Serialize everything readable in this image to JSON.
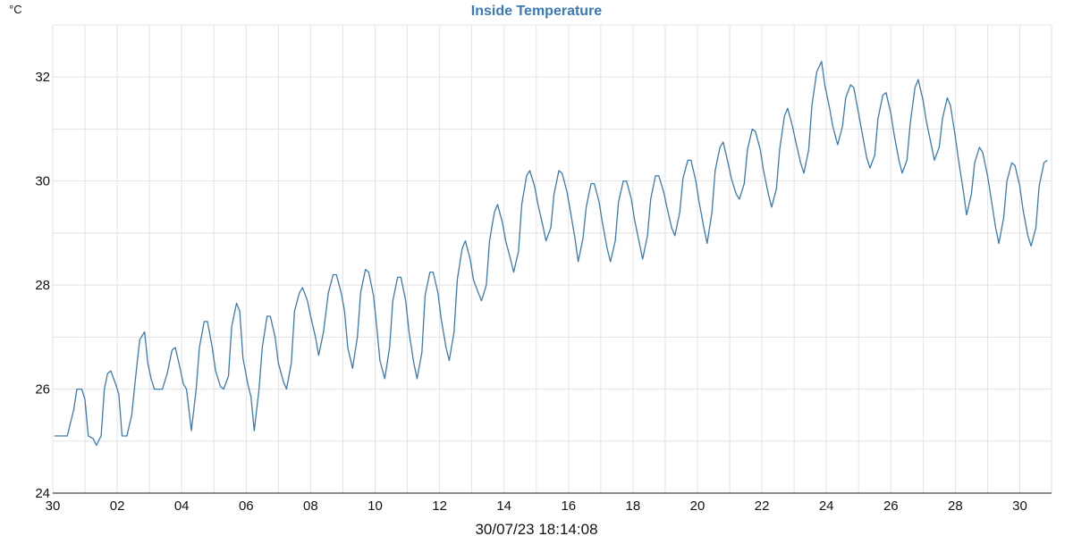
{
  "colors": {
    "title": "#3a7ab5",
    "series": "#3a7ab5"
  },
  "chart_data": {
    "type": "line",
    "title": "Inside Temperature",
    "unit_label": "°C",
    "timestamp": "30/07/23 18:14:08",
    "xlabel": "",
    "ylabel": "",
    "ylim": [
      24,
      33
    ],
    "xlim": [
      0,
      31.8
    ],
    "grid": true,
    "x_tick_labels": [
      "30",
      "02",
      "04",
      "06",
      "08",
      "10",
      "12",
      "14",
      "16",
      "18",
      "20",
      "22",
      "24",
      "26",
      "28",
      "30"
    ],
    "x_tick_values": [
      0,
      2,
      4,
      6,
      8,
      10,
      12,
      14,
      16,
      18,
      20,
      22,
      24,
      26,
      28,
      30
    ],
    "y_tick_values": [
      24,
      26,
      28,
      30,
      32
    ],
    "series": [
      {
        "name": "",
        "points": [
          [
            0.05,
            25.1
          ],
          [
            0.45,
            25.1
          ],
          [
            0.65,
            25.6
          ],
          [
            0.75,
            26.0
          ],
          [
            0.9,
            26.0
          ],
          [
            1.0,
            25.8
          ],
          [
            1.1,
            25.1
          ],
          [
            1.25,
            25.05
          ],
          [
            1.35,
            24.92
          ],
          [
            1.5,
            25.1
          ],
          [
            1.6,
            26.0
          ],
          [
            1.7,
            26.3
          ],
          [
            1.8,
            26.35
          ],
          [
            1.95,
            26.1
          ],
          [
            2.05,
            25.9
          ],
          [
            2.15,
            25.1
          ],
          [
            2.3,
            25.1
          ],
          [
            2.45,
            25.5
          ],
          [
            2.6,
            26.4
          ],
          [
            2.7,
            26.95
          ],
          [
            2.85,
            27.1
          ],
          [
            2.95,
            26.5
          ],
          [
            3.05,
            26.2
          ],
          [
            3.15,
            26.0
          ],
          [
            3.4,
            26.0
          ],
          [
            3.55,
            26.3
          ],
          [
            3.7,
            26.75
          ],
          [
            3.8,
            26.8
          ],
          [
            3.95,
            26.4
          ],
          [
            4.05,
            26.1
          ],
          [
            4.15,
            26.0
          ],
          [
            4.3,
            25.2
          ],
          [
            4.45,
            26.0
          ],
          [
            4.55,
            26.8
          ],
          [
            4.7,
            27.3
          ],
          [
            4.8,
            27.3
          ],
          [
            4.95,
            26.8
          ],
          [
            5.05,
            26.35
          ],
          [
            5.2,
            26.05
          ],
          [
            5.3,
            26.0
          ],
          [
            5.45,
            26.25
          ],
          [
            5.55,
            27.2
          ],
          [
            5.7,
            27.65
          ],
          [
            5.8,
            27.5
          ],
          [
            5.9,
            26.6
          ],
          [
            6.05,
            26.1
          ],
          [
            6.15,
            25.85
          ],
          [
            6.25,
            25.2
          ],
          [
            6.4,
            26.0
          ],
          [
            6.5,
            26.8
          ],
          [
            6.65,
            27.4
          ],
          [
            6.75,
            27.4
          ],
          [
            6.9,
            27.0
          ],
          [
            7.0,
            26.5
          ],
          [
            7.15,
            26.15
          ],
          [
            7.25,
            26.0
          ],
          [
            7.4,
            26.5
          ],
          [
            7.5,
            27.5
          ],
          [
            7.65,
            27.85
          ],
          [
            7.75,
            27.95
          ],
          [
            7.9,
            27.7
          ],
          [
            8.0,
            27.4
          ],
          [
            8.15,
            27.0
          ],
          [
            8.25,
            26.65
          ],
          [
            8.4,
            27.1
          ],
          [
            8.55,
            27.85
          ],
          [
            8.7,
            28.2
          ],
          [
            8.8,
            28.2
          ],
          [
            8.95,
            27.85
          ],
          [
            9.05,
            27.5
          ],
          [
            9.15,
            26.8
          ],
          [
            9.3,
            26.4
          ],
          [
            9.45,
            27.0
          ],
          [
            9.55,
            27.85
          ],
          [
            9.7,
            28.3
          ],
          [
            9.8,
            28.25
          ],
          [
            9.95,
            27.8
          ],
          [
            10.05,
            27.2
          ],
          [
            10.15,
            26.55
          ],
          [
            10.3,
            26.2
          ],
          [
            10.45,
            26.8
          ],
          [
            10.55,
            27.7
          ],
          [
            10.7,
            28.15
          ],
          [
            10.8,
            28.15
          ],
          [
            10.95,
            27.7
          ],
          [
            11.05,
            27.1
          ],
          [
            11.2,
            26.5
          ],
          [
            11.3,
            26.2
          ],
          [
            11.45,
            26.7
          ],
          [
            11.55,
            27.8
          ],
          [
            11.7,
            28.25
          ],
          [
            11.8,
            28.25
          ],
          [
            11.95,
            27.85
          ],
          [
            12.05,
            27.35
          ],
          [
            12.2,
            26.8
          ],
          [
            12.3,
            26.55
          ],
          [
            12.45,
            27.1
          ],
          [
            12.55,
            28.1
          ],
          [
            12.7,
            28.7
          ],
          [
            12.8,
            28.85
          ],
          [
            12.95,
            28.5
          ],
          [
            13.05,
            28.1
          ],
          [
            13.2,
            27.85
          ],
          [
            13.3,
            27.7
          ],
          [
            13.45,
            28.0
          ],
          [
            13.55,
            28.85
          ],
          [
            13.7,
            29.4
          ],
          [
            13.8,
            29.55
          ],
          [
            13.95,
            29.2
          ],
          [
            14.05,
            28.85
          ],
          [
            14.2,
            28.5
          ],
          [
            14.3,
            28.25
          ],
          [
            14.45,
            28.65
          ],
          [
            14.55,
            29.55
          ],
          [
            14.7,
            30.1
          ],
          [
            14.8,
            30.2
          ],
          [
            14.95,
            29.9
          ],
          [
            15.05,
            29.55
          ],
          [
            15.2,
            29.15
          ],
          [
            15.3,
            28.85
          ],
          [
            15.45,
            29.1
          ],
          [
            15.55,
            29.75
          ],
          [
            15.7,
            30.2
          ],
          [
            15.8,
            30.15
          ],
          [
            15.95,
            29.8
          ],
          [
            16.05,
            29.45
          ],
          [
            16.2,
            28.9
          ],
          [
            16.3,
            28.45
          ],
          [
            16.45,
            28.9
          ],
          [
            16.55,
            29.5
          ],
          [
            16.7,
            29.95
          ],
          [
            16.8,
            29.95
          ],
          [
            16.95,
            29.6
          ],
          [
            17.05,
            29.2
          ],
          [
            17.2,
            28.7
          ],
          [
            17.3,
            28.45
          ],
          [
            17.45,
            28.85
          ],
          [
            17.55,
            29.6
          ],
          [
            17.7,
            30.0
          ],
          [
            17.8,
            30.0
          ],
          [
            17.95,
            29.65
          ],
          [
            18.05,
            29.25
          ],
          [
            18.2,
            28.8
          ],
          [
            18.3,
            28.5
          ],
          [
            18.45,
            28.95
          ],
          [
            18.55,
            29.65
          ],
          [
            18.7,
            30.1
          ],
          [
            18.8,
            30.1
          ],
          [
            18.95,
            29.8
          ],
          [
            19.05,
            29.5
          ],
          [
            19.2,
            29.1
          ],
          [
            19.3,
            28.95
          ],
          [
            19.45,
            29.4
          ],
          [
            19.55,
            30.05
          ],
          [
            19.7,
            30.4
          ],
          [
            19.8,
            30.4
          ],
          [
            19.95,
            30.0
          ],
          [
            20.05,
            29.6
          ],
          [
            20.2,
            29.1
          ],
          [
            20.3,
            28.8
          ],
          [
            20.45,
            29.4
          ],
          [
            20.55,
            30.2
          ],
          [
            20.7,
            30.65
          ],
          [
            20.8,
            30.75
          ],
          [
            20.95,
            30.35
          ],
          [
            21.05,
            30.05
          ],
          [
            21.2,
            29.75
          ],
          [
            21.3,
            29.65
          ],
          [
            21.45,
            29.95
          ],
          [
            21.55,
            30.6
          ],
          [
            21.7,
            31.0
          ],
          [
            21.8,
            30.95
          ],
          [
            21.95,
            30.6
          ],
          [
            22.05,
            30.2
          ],
          [
            22.2,
            29.75
          ],
          [
            22.3,
            29.5
          ],
          [
            22.45,
            29.85
          ],
          [
            22.55,
            30.6
          ],
          [
            22.7,
            31.25
          ],
          [
            22.8,
            31.4
          ],
          [
            22.95,
            31.05
          ],
          [
            23.05,
            30.75
          ],
          [
            23.2,
            30.35
          ],
          [
            23.3,
            30.15
          ],
          [
            23.45,
            30.6
          ],
          [
            23.55,
            31.45
          ],
          [
            23.7,
            32.1
          ],
          [
            23.85,
            32.3
          ],
          [
            23.95,
            31.85
          ],
          [
            24.1,
            31.4
          ],
          [
            24.2,
            31.05
          ],
          [
            24.35,
            30.7
          ],
          [
            24.5,
            31.05
          ],
          [
            24.6,
            31.6
          ],
          [
            24.75,
            31.85
          ],
          [
            24.85,
            31.8
          ],
          [
            25.0,
            31.3
          ],
          [
            25.1,
            30.95
          ],
          [
            25.25,
            30.45
          ],
          [
            25.35,
            30.25
          ],
          [
            25.5,
            30.5
          ],
          [
            25.6,
            31.2
          ],
          [
            25.75,
            31.65
          ],
          [
            25.85,
            31.7
          ],
          [
            26.0,
            31.3
          ],
          [
            26.1,
            30.9
          ],
          [
            26.25,
            30.4
          ],
          [
            26.35,
            30.15
          ],
          [
            26.5,
            30.4
          ],
          [
            26.6,
            31.1
          ],
          [
            26.75,
            31.8
          ],
          [
            26.85,
            31.95
          ],
          [
            27.0,
            31.55
          ],
          [
            27.1,
            31.15
          ],
          [
            27.25,
            30.7
          ],
          [
            27.35,
            30.4
          ],
          [
            27.5,
            30.65
          ],
          [
            27.6,
            31.2
          ],
          [
            27.75,
            31.6
          ],
          [
            27.85,
            31.45
          ],
          [
            28.0,
            30.85
          ],
          [
            28.1,
            30.4
          ],
          [
            28.25,
            29.8
          ],
          [
            28.35,
            29.35
          ],
          [
            28.5,
            29.75
          ],
          [
            28.6,
            30.35
          ],
          [
            28.75,
            30.65
          ],
          [
            28.85,
            30.55
          ],
          [
            29.0,
            30.1
          ],
          [
            29.1,
            29.7
          ],
          [
            29.25,
            29.1
          ],
          [
            29.35,
            28.8
          ],
          [
            29.5,
            29.3
          ],
          [
            29.6,
            30.0
          ],
          [
            29.75,
            30.35
          ],
          [
            29.85,
            30.3
          ],
          [
            30.0,
            29.9
          ],
          [
            30.1,
            29.45
          ],
          [
            30.25,
            28.95
          ],
          [
            30.35,
            28.75
          ],
          [
            30.5,
            29.1
          ],
          [
            30.6,
            29.9
          ],
          [
            30.75,
            30.35
          ],
          [
            30.85,
            30.4
          ]
        ]
      }
    ]
  }
}
